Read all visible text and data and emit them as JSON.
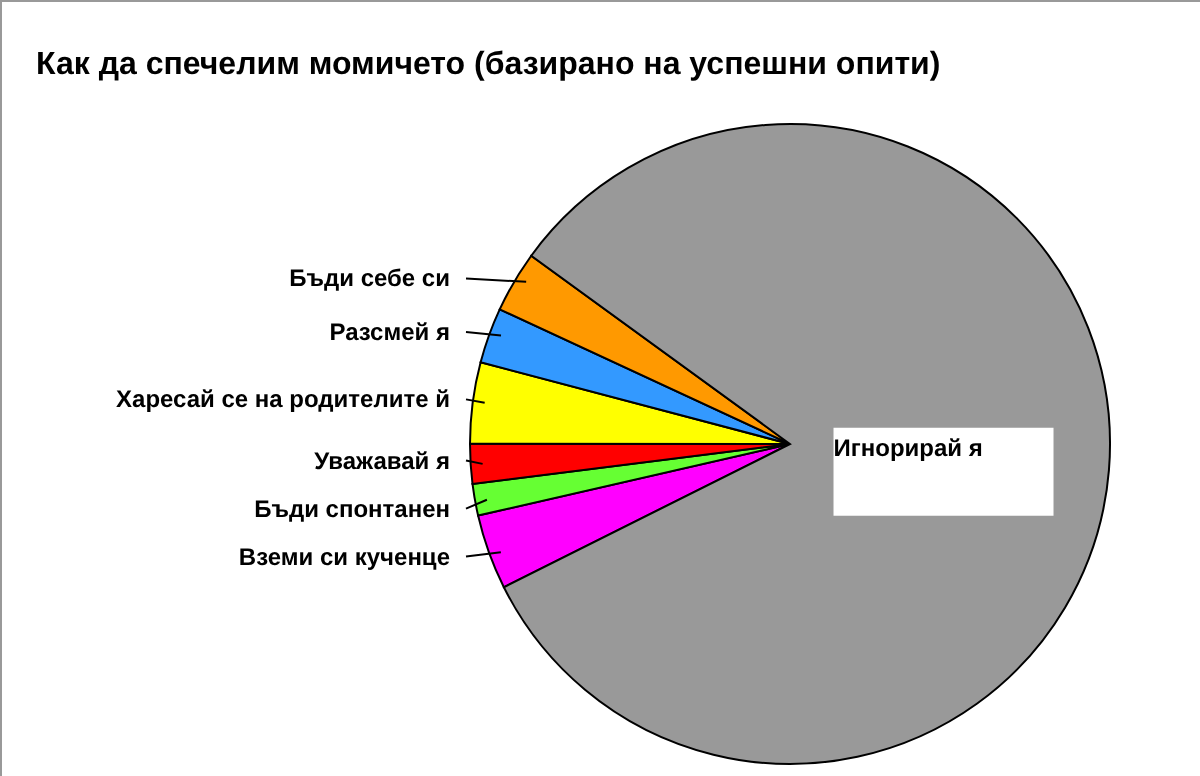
{
  "chart_data": {
    "type": "pie",
    "title": "Как да спечелим момичето (базирано на успешни опити)",
    "categories": [
      "Вземи си кученце",
      "Бъди спонтанен",
      "Уважавай я",
      "Харесай се на родителите й",
      "Разсмей я",
      "Бъди себе си",
      "Игнорирай я"
    ],
    "values": [
      3.8,
      1.6,
      2.0,
      4.1,
      2.8,
      3.1,
      82.6
    ],
    "colors": [
      "#ff00ff",
      "#66ff33",
      "#ff0000",
      "#ffff00",
      "#3399ff",
      "#ff9900",
      "#999999"
    ]
  }
}
